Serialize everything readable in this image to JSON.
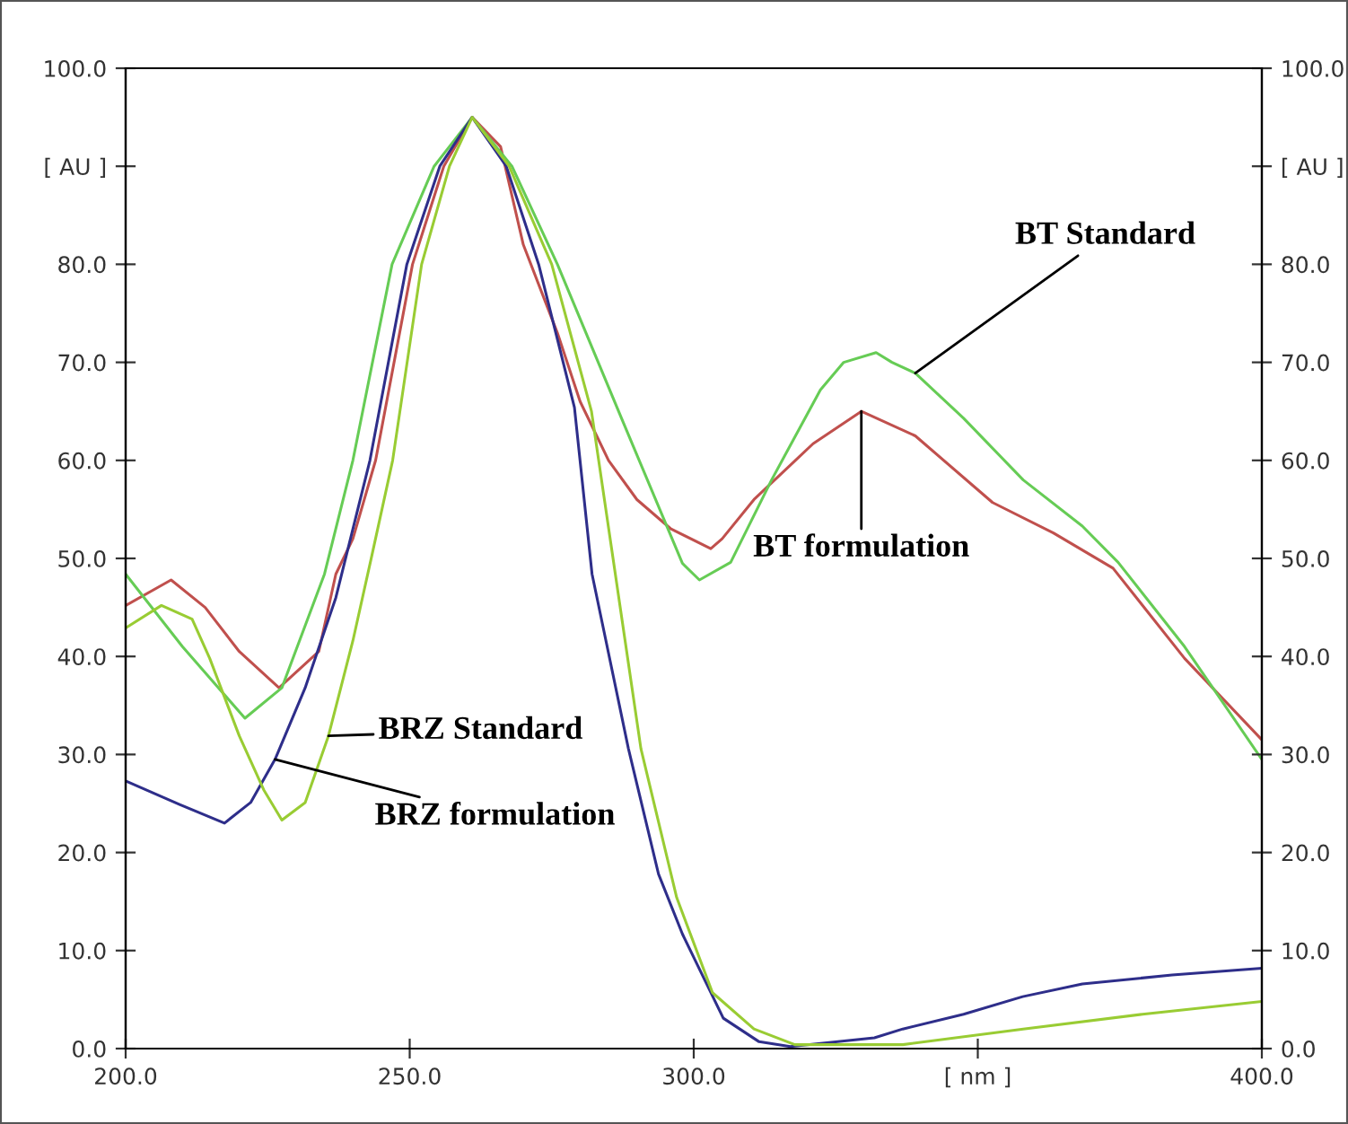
{
  "chart_data": {
    "type": "line",
    "xlabel": null,
    "xlim": [
      200,
      400
    ],
    "xticks": [
      {
        "value": 200,
        "label": "200.0"
      },
      {
        "value": 250,
        "label": "250.0"
      },
      {
        "value": 300,
        "label": "300.0"
      },
      {
        "value": 350,
        "label": "[ nm ]"
      },
      {
        "value": 400,
        "label": "400.0"
      }
    ],
    "ylim": [
      0,
      100
    ],
    "yticks": [
      {
        "value": 0,
        "label": "0.0"
      },
      {
        "value": 10,
        "label": "10.0"
      },
      {
        "value": 20,
        "label": "20.0"
      },
      {
        "value": 30,
        "label": "30.0"
      },
      {
        "value": 40,
        "label": "40.0"
      },
      {
        "value": 50,
        "label": "50.0"
      },
      {
        "value": 60,
        "label": "60.0"
      },
      {
        "value": 70,
        "label": "70.0"
      },
      {
        "value": 80,
        "label": "80.0"
      },
      {
        "value": 90,
        "label": "[ AU ]"
      },
      {
        "value": 100,
        "label": "100.0"
      }
    ],
    "y2lim": [
      0,
      100
    ],
    "y2ticks": [
      {
        "value": 0,
        "label": "0.0"
      },
      {
        "value": 10,
        "label": "10.0"
      },
      {
        "value": 20,
        "label": "20.0"
      },
      {
        "value": 30,
        "label": "30.0"
      },
      {
        "value": 40,
        "label": "40.0"
      },
      {
        "value": 50,
        "label": "50.0"
      },
      {
        "value": 60,
        "label": "60.0"
      },
      {
        "value": 70,
        "label": "70.0"
      },
      {
        "value": 80,
        "label": "80.0"
      },
      {
        "value": 90,
        "label": "[ AU ]"
      },
      {
        "value": 100,
        "label": "100.0"
      }
    ],
    "grid": false,
    "legend": false,
    "marker": "none",
    "line_style": "solid",
    "series": [
      {
        "color": "#c0504d",
        "x": [
          200,
          208,
          214,
          220,
          227,
          234,
          237,
          240,
          244,
          250.5,
          256,
          261,
          266,
          270,
          276,
          280,
          285,
          290,
          296,
          303,
          305,
          310.6,
          321,
          329.5,
          339,
          352.6,
          363.3,
          373.8,
          386.4,
          400
        ],
        "values": [
          45.2,
          47.8,
          45,
          40.5,
          36.8,
          40.5,
          48.4,
          52,
          60,
          80,
          90,
          95,
          92,
          82,
          73,
          66,
          60,
          56,
          53,
          51,
          52,
          56,
          61.7,
          65,
          62.5,
          55.7,
          52.6,
          49,
          39.8,
          31.5
        ]
      },
      {
        "color": "#66cc55",
        "x": [
          200,
          210,
          221,
          227.5,
          235,
          240,
          246.9,
          254.3,
          261,
          268,
          276,
          287.5,
          298,
          301,
          306.5,
          313.7,
          322.3,
          326.4,
          332.1,
          334.9,
          339,
          347.5,
          358,
          368.4,
          374.7,
          386.4,
          400
        ],
        "values": [
          48.4,
          41,
          33.7,
          36.8,
          48.4,
          60,
          80,
          90,
          95,
          90,
          80,
          64,
          49.5,
          47.8,
          49.6,
          58,
          67.2,
          70,
          71,
          70,
          68.9,
          64.3,
          58,
          53.3,
          49.6,
          41,
          29.5
        ]
      },
      {
        "color": "#2e2e8a",
        "x": [
          200,
          209.5,
          217.4,
          222,
          226.3,
          231.6,
          237,
          243,
          249.5,
          255.3,
          261,
          267,
          272.7,
          279,
          282.1,
          288.5,
          293.8,
          298,
          299.5,
          305.2,
          311.5,
          317,
          331.8,
          336.8,
          347.5,
          357.9,
          368.4,
          384.2,
          400
        ],
        "values": [
          27.3,
          24.9,
          23,
          25.1,
          29.5,
          36.8,
          46,
          60,
          80,
          90,
          95,
          90,
          80,
          65.4,
          48.4,
          30.6,
          17.8,
          11.7,
          9.9,
          3.1,
          0.7,
          0.2,
          1.1,
          2,
          3.5,
          5.3,
          6.6,
          7.5,
          8.2
        ]
      },
      {
        "color": "#99cc33",
        "x": [
          200,
          206.3,
          211.7,
          214.8,
          220,
          224.3,
          227.5,
          231.6,
          235.7,
          240,
          243.3,
          247,
          252.1,
          257,
          261,
          267.5,
          275,
          282,
          290.7,
          297,
          303.3,
          310.6,
          317.8,
          336.8,
          358,
          379,
          400
        ],
        "values": [
          42.9,
          45.2,
          43.8,
          39.8,
          31.9,
          26.4,
          23.3,
          25.1,
          31.9,
          41.6,
          50.2,
          60,
          80,
          90,
          95,
          90,
          80,
          65,
          30.6,
          15.4,
          5.7,
          2,
          0.4,
          0.4,
          2,
          3.5,
          4.8
        ]
      }
    ],
    "annotations": [
      {
        "text": "BT Standard",
        "x": 339,
        "y": 68.9
      },
      {
        "text": "BT formulation",
        "x": 329.5,
        "y": 65
      },
      {
        "text": "BRZ Standard",
        "x": 235.7,
        "y": 31.9
      },
      {
        "text": "BRZ formulation",
        "x": 226.3,
        "y": 29.5
      }
    ]
  }
}
